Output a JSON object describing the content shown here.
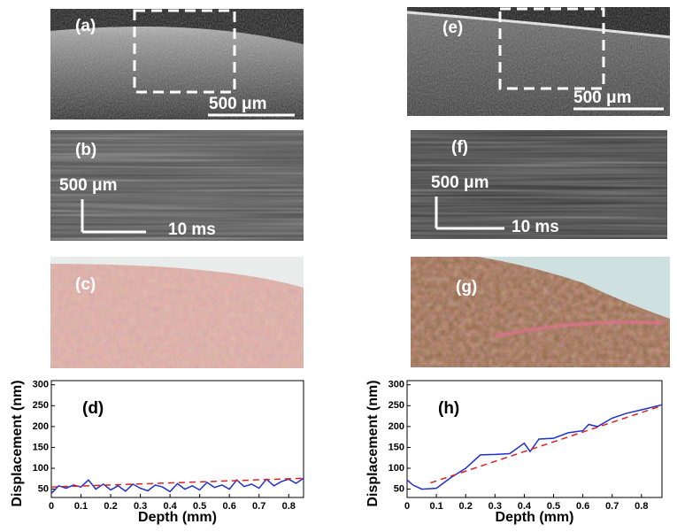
{
  "panels": [
    {
      "label": "(a)",
      "scale": "500 μm"
    },
    {
      "label": "(b)",
      "scale": "500 μm",
      "time": "10 ms"
    },
    {
      "label": "(c)"
    },
    {
      "label": "(e)",
      "scale": "500 μm"
    },
    {
      "label": "(f)",
      "scale": "500 μm",
      "time": "10 ms"
    },
    {
      "label": "(g)"
    }
  ],
  "chart_data": [
    {
      "type": "line",
      "panel_label": "(d)",
      "x_label": "Depth (mm)",
      "y_label": "Displacement (nm)",
      "xlim": [
        0,
        0.85
      ],
      "ylim": [
        30,
        310
      ],
      "xticks": [
        0,
        0.1,
        0.2,
        0.3,
        0.4,
        0.5,
        0.6,
        0.7,
        0.8
      ],
      "yticks": [
        50,
        100,
        150,
        200,
        250,
        300
      ],
      "series": [
        {
          "color": "#1f2fd0",
          "dashed": false,
          "x": [
            0,
            0.025,
            0.05,
            0.075,
            0.1,
            0.125,
            0.15,
            0.175,
            0.2,
            0.225,
            0.25,
            0.275,
            0.3,
            0.325,
            0.35,
            0.375,
            0.4,
            0.425,
            0.45,
            0.475,
            0.5,
            0.525,
            0.55,
            0.575,
            0.6,
            0.625,
            0.65,
            0.675,
            0.7,
            0.725,
            0.75,
            0.775,
            0.8,
            0.825,
            0.85
          ],
          "values": [
            40,
            58,
            52,
            60,
            55,
            72,
            50,
            62,
            48,
            58,
            45,
            62,
            52,
            46,
            60,
            55,
            44,
            63,
            50,
            58,
            48,
            66,
            54,
            60,
            50,
            72,
            56,
            62,
            52,
            74,
            58,
            68,
            74,
            64,
            76
          ]
        },
        {
          "color": "#e02020",
          "dashed": true,
          "x": [
            0,
            0.85
          ],
          "values": [
            55,
            76
          ]
        }
      ]
    },
    {
      "type": "line",
      "panel_label": "(h)",
      "x_label": "Depth (mm)",
      "y_label": "Displacement (nm)",
      "xlim": [
        0,
        0.87
      ],
      "ylim": [
        30,
        310
      ],
      "xticks": [
        0,
        0.1,
        0.2,
        0.3,
        0.4,
        0.5,
        0.6,
        0.7,
        0.8
      ],
      "yticks": [
        50,
        100,
        150,
        200,
        250,
        300
      ],
      "series": [
        {
          "color": "#1f2fd0",
          "dashed": false,
          "x": [
            0,
            0.02,
            0.05,
            0.1,
            0.15,
            0.2,
            0.25,
            0.3,
            0.35,
            0.4,
            0.42,
            0.45,
            0.5,
            0.55,
            0.6,
            0.62,
            0.65,
            0.7,
            0.75,
            0.8,
            0.87
          ],
          "values": [
            72,
            60,
            50,
            52,
            78,
            100,
            132,
            133,
            135,
            160,
            140,
            170,
            172,
            185,
            190,
            205,
            200,
            220,
            232,
            240,
            252
          ]
        },
        {
          "color": "#e02020",
          "dashed": true,
          "x": [
            0.08,
            0.87
          ],
          "values": [
            65,
            250
          ]
        }
      ]
    }
  ]
}
